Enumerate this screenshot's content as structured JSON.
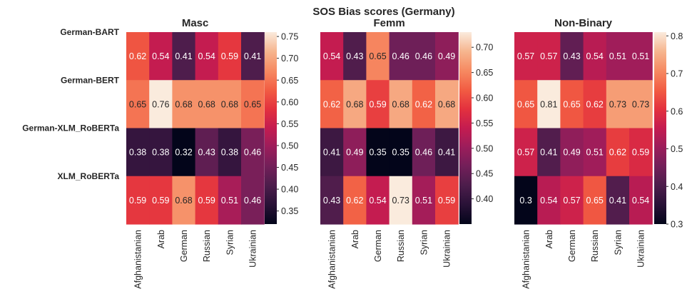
{
  "chart_data": {
    "type": "heatmap",
    "title": "SOS Bias scores (Germany)",
    "row_labels": [
      "German-BART",
      "German-BERT",
      "German-XLM_RoBERTa",
      "XLM_RoBERTa"
    ],
    "col_labels": [
      "Afghanistanian",
      "Arab",
      "German",
      "Russian",
      "Syrian",
      "Ukrainian"
    ],
    "colormap": "rocket",
    "panels": [
      {
        "title": "Masc",
        "values": [
          [
            0.62,
            0.54,
            0.41,
            0.54,
            0.59,
            0.41
          ],
          [
            0.65,
            0.76,
            0.68,
            0.68,
            0.68,
            0.65
          ],
          [
            0.38,
            0.38,
            0.32,
            0.43,
            0.38,
            0.46
          ],
          [
            0.59,
            0.59,
            0.68,
            0.59,
            0.51,
            0.46
          ]
        ],
        "vmin": 0.32,
        "vmax": 0.76,
        "colorbar_ticks": [
          "0.35",
          "0.40",
          "0.45",
          "0.50",
          "0.55",
          "0.60",
          "0.65",
          "0.70",
          "0.75"
        ]
      },
      {
        "title": "Femm",
        "values": [
          [
            0.54,
            0.43,
            0.65,
            0.46,
            0.46,
            0.49
          ],
          [
            0.62,
            0.68,
            0.59,
            0.68,
            0.62,
            0.68
          ],
          [
            0.41,
            0.49,
            0.35,
            0.35,
            0.46,
            0.41
          ],
          [
            0.43,
            0.62,
            0.54,
            0.73,
            0.51,
            0.59
          ]
        ],
        "vmin": 0.35,
        "vmax": 0.73,
        "colorbar_ticks": [
          "0.40",
          "0.45",
          "0.50",
          "0.55",
          "0.60",
          "0.65",
          "0.70"
        ]
      },
      {
        "title": "Non-Binary",
        "values": [
          [
            0.57,
            0.57,
            0.43,
            0.54,
            0.51,
            0.51
          ],
          [
            0.65,
            0.81,
            0.65,
            0.62,
            0.73,
            0.73
          ],
          [
            0.57,
            0.41,
            0.49,
            0.51,
            0.62,
            0.59
          ],
          [
            0.3,
            0.54,
            0.57,
            0.65,
            0.41,
            0.54
          ]
        ],
        "vmin": 0.3,
        "vmax": 0.81,
        "colorbar_ticks": [
          "0.3",
          "0.4",
          "0.5",
          "0.6",
          "0.7",
          "0.8"
        ]
      }
    ]
  }
}
